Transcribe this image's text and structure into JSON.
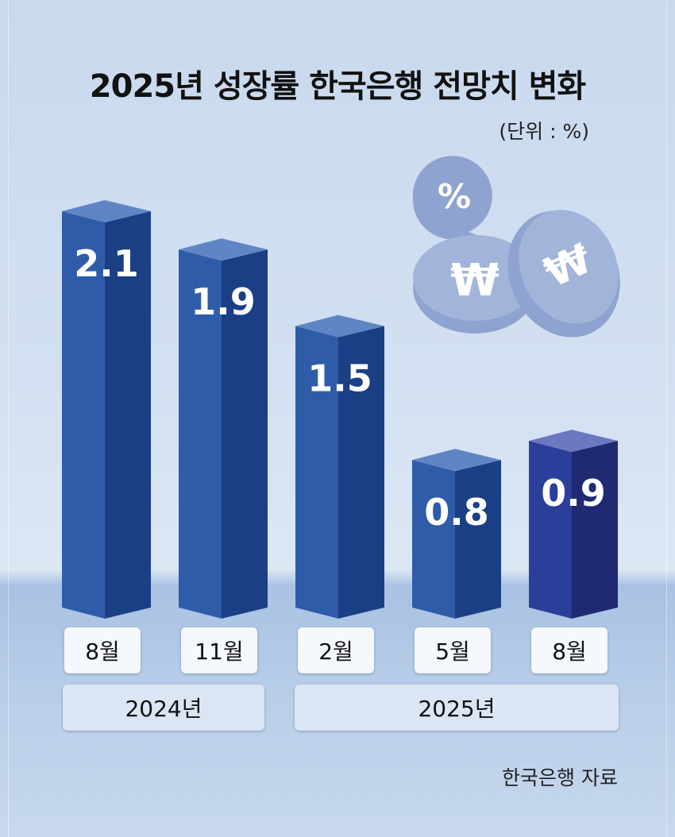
{
  "chart_data": {
    "type": "bar",
    "title": "2025년 성장률 한국은행 전망치 변화",
    "unit": "(단위 : %)",
    "source": "한국은행 자료",
    "categories": [
      "8월",
      "11월",
      "2월",
      "5월",
      "8월"
    ],
    "values": [
      2.1,
      1.9,
      1.5,
      0.8,
      0.9
    ],
    "value_labels": [
      "2.1",
      "1.9",
      "1.5",
      "0.8",
      "0.9"
    ],
    "groups": [
      {
        "label": "2024년",
        "categories": [
          "8월",
          "11월"
        ]
      },
      {
        "label": "2025년",
        "categories": [
          "2월",
          "5월",
          "8월"
        ]
      }
    ],
    "ylim": [
      0,
      2.1
    ],
    "colors": {
      "bar_front": "#2f5ca8",
      "bar_side": "#1b3f84",
      "bar_top": "#5f85c4",
      "highlight_front": "#2b3f9a",
      "highlight_side": "#1f2a73",
      "highlight_top": "#6b78bf"
    }
  },
  "decoration": {
    "percent_symbol": "%",
    "won_symbol": "₩"
  }
}
